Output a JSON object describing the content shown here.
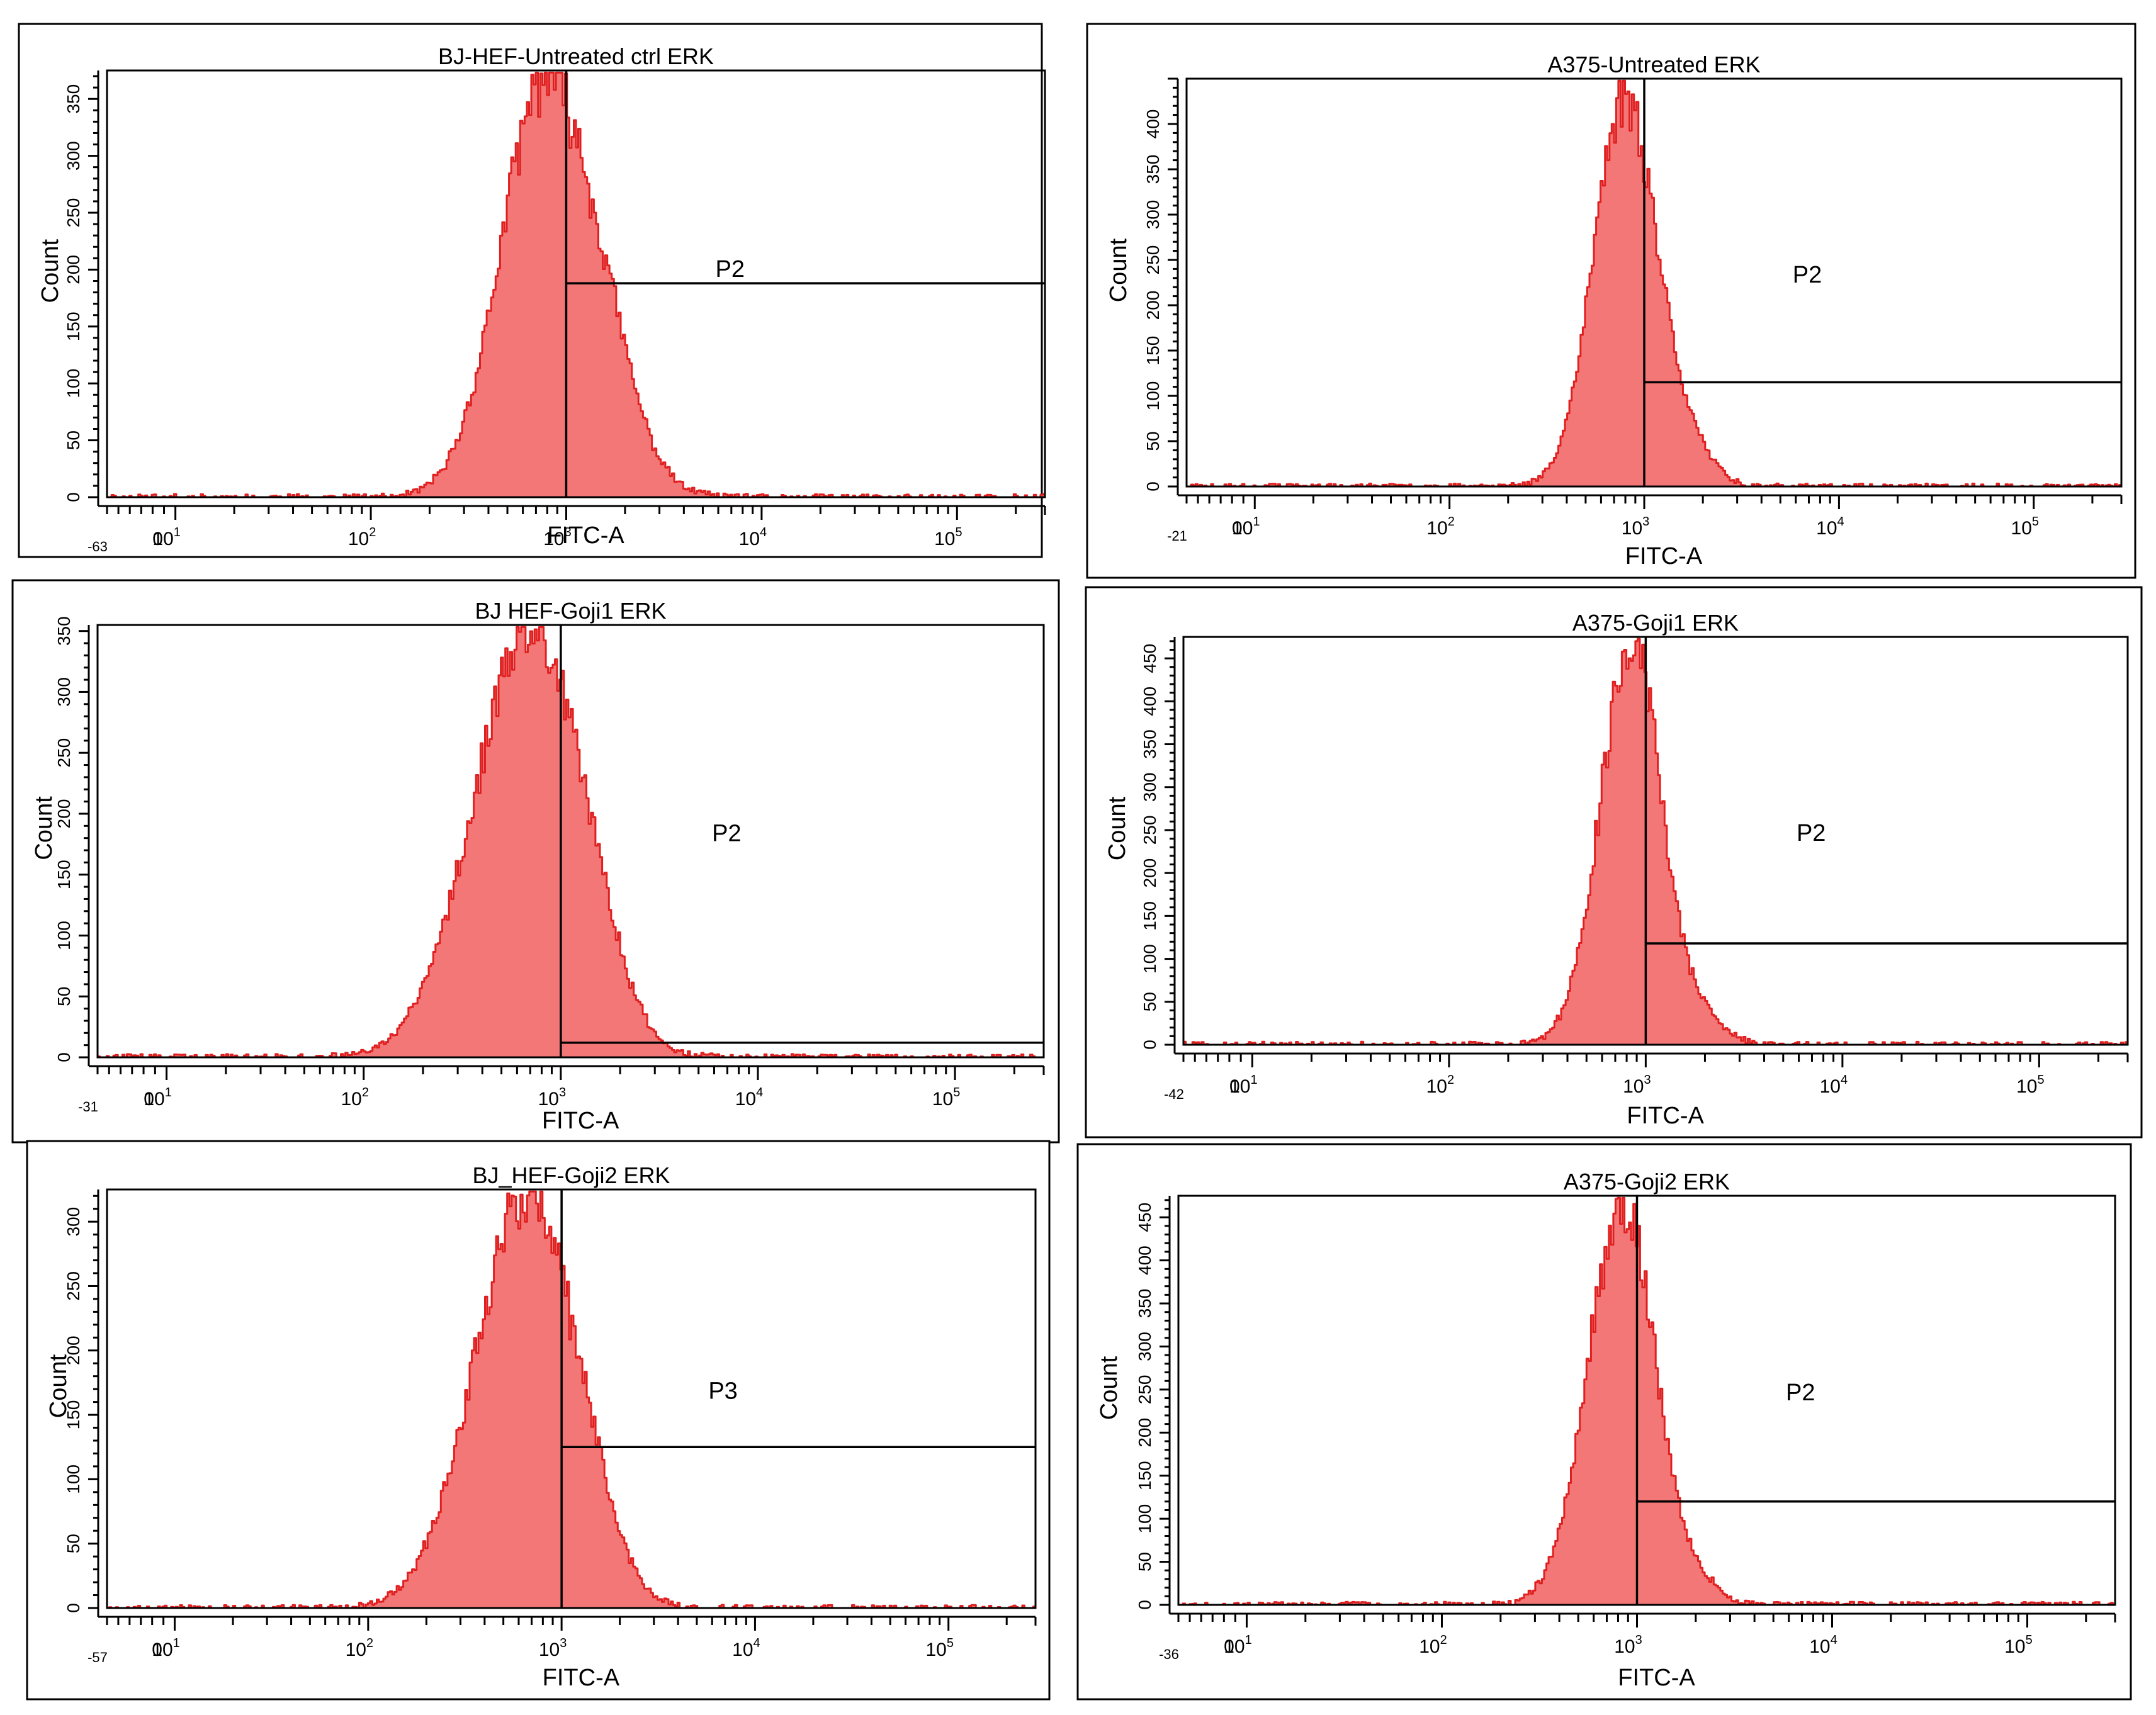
{
  "chart_data": [
    {
      "type": "histogram",
      "title": "BJ-HEF-Untreated ctrl ERK",
      "xlabel": "FITC-A",
      "ylabel": "Count",
      "x_scale": "biexponential (log10 above 10^1)",
      "x_min_label": "-63",
      "xlim_log10": [
        0.65,
        5.45
      ],
      "ylim": [
        0,
        375
      ],
      "y_ticks": [
        0,
        50,
        100,
        150,
        200,
        250,
        300,
        350
      ],
      "x_ticks": [
        {
          "base": "0",
          "exp": ""
        },
        {
          "base": "10",
          "exp": "1"
        },
        {
          "base": "10",
          "exp": "2"
        },
        {
          "base": "10",
          "exp": "3"
        },
        {
          "base": "10",
          "exp": "4"
        },
        {
          "base": "10",
          "exp": "5"
        }
      ],
      "peak_log10": 2.9,
      "peak_count": 370,
      "sigma_left": 0.23,
      "sigma_right": 0.26,
      "gate": {
        "label": "P2",
        "x_start_log10": 3.0,
        "level": 188
      },
      "seed": 11
    },
    {
      "type": "histogram",
      "title": "A375-Untreated ERK",
      "xlabel": "FITC-A",
      "ylabel": "Count",
      "x_scale": "biexponential (log10 above 10^1)",
      "x_min_label": "-21",
      "xlim_log10": [
        0.65,
        5.45
      ],
      "ylim": [
        0,
        450
      ],
      "y_ticks": [
        0,
        50,
        100,
        150,
        200,
        250,
        300,
        350,
        400
      ],
      "x_ticks": [
        {
          "base": "0",
          "exp": ""
        },
        {
          "base": "10",
          "exp": "1"
        },
        {
          "base": "10",
          "exp": "2"
        },
        {
          "base": "10",
          "exp": "3"
        },
        {
          "base": "10",
          "exp": "4"
        },
        {
          "base": "10",
          "exp": "5"
        }
      ],
      "peak_log10": 2.9,
      "peak_count": 430,
      "sigma_left": 0.16,
      "sigma_right": 0.17,
      "gate": {
        "label": "P2",
        "x_start_log10": 3.0,
        "level": 115
      },
      "seed": 23
    },
    {
      "type": "histogram",
      "title": "BJ HEF-Goji1 ERK",
      "xlabel": "FITC-A",
      "ylabel": "Count",
      "x_scale": "biexponential (log10 above 10^1)",
      "x_min_label": "-31",
      "xlim_log10": [
        0.65,
        5.45
      ],
      "ylim": [
        0,
        355
      ],
      "y_ticks": [
        0,
        50,
        100,
        150,
        200,
        250,
        300,
        350
      ],
      "x_ticks": [
        {
          "base": "0",
          "exp": ""
        },
        {
          "base": "10",
          "exp": "1"
        },
        {
          "base": "10",
          "exp": "2"
        },
        {
          "base": "10",
          "exp": "3"
        },
        {
          "base": "10",
          "exp": "4"
        },
        {
          "base": "10",
          "exp": "5"
        }
      ],
      "peak_log10": 2.85,
      "peak_count": 352,
      "sigma_left": 0.29,
      "sigma_right": 0.26,
      "gate": {
        "label": "P2",
        "x_start_log10": 3.0,
        "level": 12
      },
      "seed": 37
    },
    {
      "type": "histogram",
      "title": "A375-Goji1 ERK",
      "xlabel": "FITC-A",
      "ylabel": "Count",
      "x_scale": "biexponential (log10 above 10^1)",
      "x_min_label": "-42",
      "xlim_log10": [
        0.65,
        5.45
      ],
      "ylim": [
        0,
        475
      ],
      "y_ticks": [
        0,
        50,
        100,
        150,
        200,
        250,
        300,
        350,
        400,
        450
      ],
      "x_ticks": [
        {
          "base": "0",
          "exp": ""
        },
        {
          "base": "10",
          "exp": "1"
        },
        {
          "base": "10",
          "exp": "2"
        },
        {
          "base": "10",
          "exp": "3"
        },
        {
          "base": "10",
          "exp": "4"
        },
        {
          "base": "10",
          "exp": "5"
        }
      ],
      "peak_log10": 2.93,
      "peak_count": 470,
      "sigma_left": 0.16,
      "sigma_right": 0.15,
      "gate": {
        "label": "P2",
        "x_start_log10": 3.0,
        "level": 118
      },
      "seed": 41
    },
    {
      "type": "histogram",
      "title": "BJ_HEF-Goji2 ERK",
      "xlabel": "FITC-A",
      "ylabel": "Count",
      "x_scale": "biexponential (log10 above 10^1)",
      "x_min_label": "-57",
      "xlim_log10": [
        0.65,
        5.45
      ],
      "ylim": [
        0,
        325
      ],
      "y_ticks": [
        0,
        50,
        100,
        150,
        200,
        250,
        300
      ],
      "x_ticks": [
        {
          "base": "0",
          "exp": ""
        },
        {
          "base": "10",
          "exp": "1"
        },
        {
          "base": "10",
          "exp": "2"
        },
        {
          "base": "10",
          "exp": "3"
        },
        {
          "base": "10",
          "exp": "4"
        },
        {
          "base": "10",
          "exp": "5"
        }
      ],
      "peak_log10": 2.82,
      "peak_count": 322,
      "sigma_left": 0.27,
      "sigma_right": 0.25,
      "gate": {
        "label": "P3",
        "x_start_log10": 3.0,
        "level": 125
      },
      "seed": 53
    },
    {
      "type": "histogram",
      "title": "A375-Goji2 ERK",
      "xlabel": "FITC-A",
      "ylabel": "Count",
      "x_scale": "biexponential (log10 above 10^1)",
      "x_min_label": "-36",
      "xlim_log10": [
        0.65,
        5.45
      ],
      "ylim": [
        0,
        475
      ],
      "y_ticks": [
        0,
        50,
        100,
        150,
        200,
        250,
        300,
        350,
        400,
        450
      ],
      "x_ticks": [
        {
          "base": "0",
          "exp": ""
        },
        {
          "base": "10",
          "exp": "1"
        },
        {
          "base": "10",
          "exp": "2"
        },
        {
          "base": "10",
          "exp": "3"
        },
        {
          "base": "10",
          "exp": "4"
        },
        {
          "base": "10",
          "exp": "5"
        }
      ],
      "peak_log10": 2.93,
      "peak_count": 470,
      "sigma_left": 0.18,
      "sigma_right": 0.16,
      "gate": {
        "label": "P2",
        "x_start_log10": 3.0,
        "level": 120
      },
      "seed": 67
    }
  ]
}
